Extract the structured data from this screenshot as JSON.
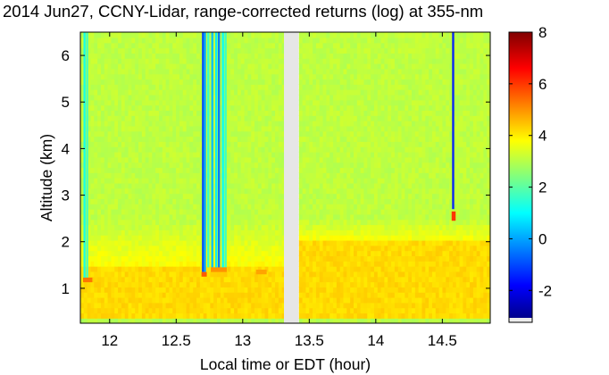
{
  "title": "2014 Jun27, CCNY-Lidar, range-corrected returns (log) at 355-nm",
  "chart_data": {
    "type": "heatmap",
    "title": "2014 Jun27, CCNY-Lidar, range-corrected returns (log) at 355-nm",
    "xlabel": "Local time or EDT (hour)",
    "ylabel": "Altitude (km)",
    "xlim": [
      11.78,
      14.86
    ],
    "ylim": [
      0.25,
      6.5
    ],
    "xticks": [
      12,
      12.5,
      13,
      13.5,
      14,
      14.5
    ],
    "xtick_labels": [
      "12",
      "12.5",
      "13",
      "13.5",
      "14",
      "14.5"
    ],
    "yticks": [
      1,
      2,
      3,
      4,
      5,
      6
    ],
    "ytick_labels": [
      "1",
      "2",
      "3",
      "4",
      "5",
      "6"
    ],
    "colorbar": {
      "range": [
        -3.2,
        8
      ],
      "ticks": [
        -2,
        0,
        2,
        4,
        6,
        8
      ],
      "tick_labels": [
        "-2",
        "0",
        "2",
        "4",
        "6",
        "8"
      ],
      "colormap": "jet"
    },
    "data_gap": {
      "x_start": 13.31,
      "x_end": 13.42
    },
    "background": {
      "surface_layer": {
        "alt_range": [
          0.25,
          0.35
        ],
        "value": 3.0
      },
      "boundary_layer": {
        "alt_range": [
          0.35,
          1.5
        ],
        "value": 4.2
      },
      "boundary_layer_top_early": {
        "alt_km": 1.5,
        "x_end": 13.31
      },
      "boundary_layer_top_late": {
        "alt_km": 2.0,
        "x_start": 13.42
      },
      "transition_value": 3.8,
      "free_troposphere": {
        "alt_range": [
          2.5,
          6.5
        ],
        "value": 3.1
      }
    },
    "features": [
      {
        "kind": "aerosol_layer",
        "x_range": [
          11.8,
          11.87
        ],
        "alt_km": 1.18,
        "value": 5.3
      },
      {
        "kind": "aerosol_layer",
        "x_range": [
          12.69,
          12.73
        ],
        "alt_km": 1.3,
        "value": 5.6
      },
      {
        "kind": "aerosol_layer",
        "x_range": [
          12.76,
          12.88
        ],
        "alt_km": 1.4,
        "value": 5.0
      },
      {
        "kind": "aerosol_layer",
        "x_range": [
          13.1,
          13.18
        ],
        "alt_km": 1.35,
        "value": 4.8
      },
      {
        "kind": "cloud",
        "x_range": [
          14.57,
          14.6
        ],
        "alt_km": 2.55,
        "value": 6.0
      }
    ],
    "cloud_shadow_columns": [
      {
        "x": 11.81,
        "alt_from_km": 1.2,
        "value": 1.2
      },
      {
        "x": 11.83,
        "alt_from_km": 1.2,
        "value": 1.8
      },
      {
        "x": 12.7,
        "alt_from_km": 1.35,
        "value": -1.0
      },
      {
        "x": 12.715,
        "alt_from_km": 1.35,
        "value": 0.0
      },
      {
        "x": 12.74,
        "alt_from_km": 1.45,
        "value": 1.5
      },
      {
        "x": 12.77,
        "alt_from_km": 1.45,
        "value": 0.3
      },
      {
        "x": 12.8,
        "alt_from_km": 1.4,
        "value": 0.8
      },
      {
        "x": 12.82,
        "alt_from_km": 1.4,
        "value": -0.5
      },
      {
        "x": 12.85,
        "alt_from_km": 1.4,
        "value": 1.0
      },
      {
        "x": 12.87,
        "alt_from_km": 1.45,
        "value": 1.6
      },
      {
        "x": 14.58,
        "alt_from_km": 2.7,
        "value": -1.5
      }
    ]
  }
}
